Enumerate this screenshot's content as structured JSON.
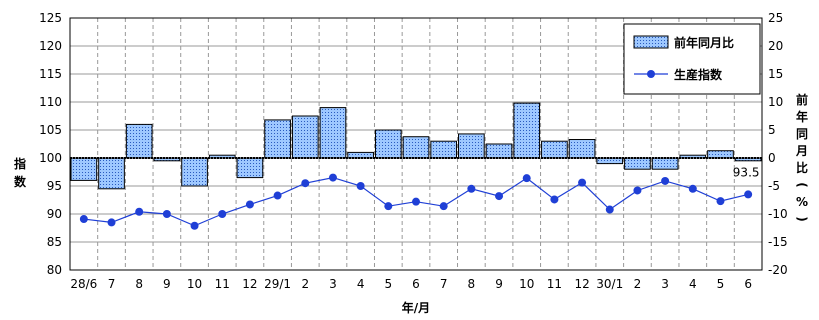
{
  "chart_data": {
    "type": "bar",
    "categories": [
      "28/6",
      "7",
      "8",
      "9",
      "10",
      "11",
      "12",
      "29/1",
      "2",
      "3",
      "4",
      "5",
      "6",
      "7",
      "8",
      "9",
      "10",
      "11",
      "12",
      "30/1",
      "2",
      "3",
      "4",
      "5",
      "6"
    ],
    "xlabel": "年/月",
    "ylabel_left": "指数",
    "ylabel_right": "前年同月比(%)",
    "ylim_left": [
      80,
      125
    ],
    "yticks_left": [
      "80",
      "85",
      "90",
      "95",
      "100",
      "105",
      "110",
      "115",
      "120",
      "125"
    ],
    "ylim_right": [
      -20,
      25
    ],
    "yticks_right": [
      "-20",
      "-15",
      "-10",
      "-5",
      "0",
      "5",
      "10",
      "15",
      "20",
      "25"
    ],
    "grid": true,
    "legend_position": "top-right",
    "series": [
      {
        "name": "前年同月比",
        "type": "bar",
        "axis": "right",
        "color": "#9ec8ff",
        "values": [
          -4,
          -5.5,
          6,
          -0.5,
          -5,
          0.5,
          -3.5,
          6.8,
          7.5,
          9,
          1,
          5,
          3.8,
          3,
          4.3,
          2.5,
          9.8,
          3,
          3.3,
          -1,
          -2,
          -2,
          0.5,
          1.3,
          -0.5
        ]
      },
      {
        "name": "生産指数",
        "type": "line",
        "axis": "left",
        "color": "#1f3fd6",
        "values": [
          89.1,
          88.5,
          90.4,
          90.0,
          87.9,
          90.0,
          91.7,
          93.3,
          95.5,
          96.5,
          95.0,
          91.4,
          92.2,
          91.4,
          94.5,
          93.2,
          96.4,
          92.6,
          95.6,
          90.8,
          94.2,
          95.9,
          94.5,
          92.3,
          93.5
        ]
      }
    ],
    "annotations": [
      {
        "text": "93.5",
        "x": "6",
        "series": "生産指数"
      }
    ]
  }
}
